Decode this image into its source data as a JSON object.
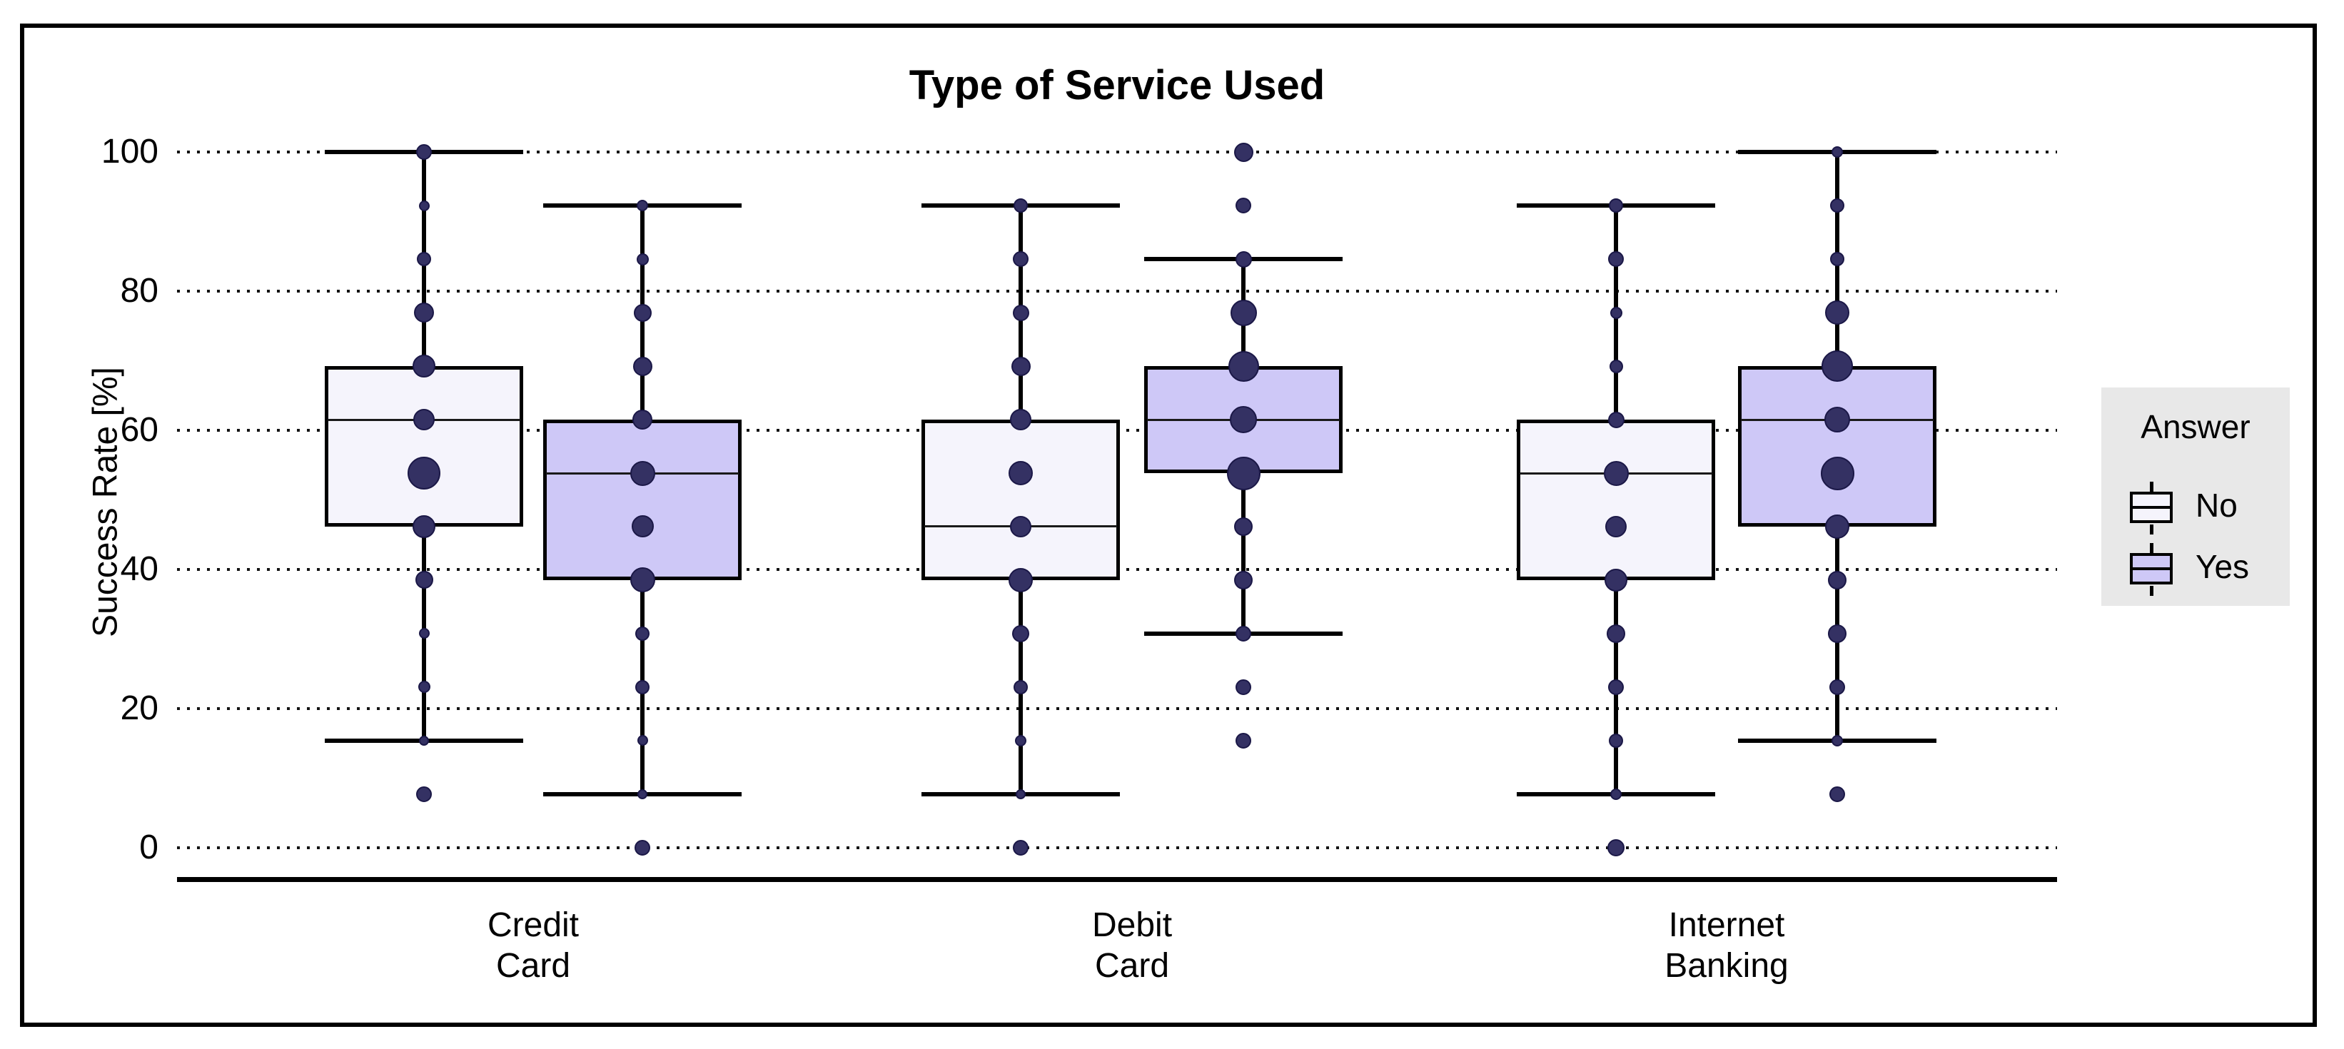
{
  "title": "Type of Service Used",
  "y_axis": {
    "label": "Success Rate [%]",
    "ticks": [
      0,
      20,
      40,
      60,
      80,
      100
    ]
  },
  "x_axis": {
    "categories": [
      [
        "Credit",
        "Card"
      ],
      [
        "Debit",
        "Card"
      ],
      [
        "Internet",
        "Banking"
      ]
    ]
  },
  "legend": {
    "title": "Answer",
    "entries": [
      {
        "label": "No",
        "fill": "#f5f4fc"
      },
      {
        "label": "Yes",
        "fill": "#cec8f7"
      }
    ]
  },
  "style": {
    "dot_fill": "#343163",
    "dot_stroke": "#1b1847",
    "box_stroke": "#000000",
    "no_fill": "#f5f4fc",
    "yes_fill": "#cec8f7",
    "legend_bg": "#e8e8e8",
    "grid_color": "#141414"
  },
  "chart_data": {
    "type": "boxplot",
    "title": "Type of Service Used",
    "ylabel": "Success Rate [%]",
    "ylim": [
      0,
      100
    ],
    "yticks": [
      0,
      20,
      40,
      60,
      80,
      100
    ],
    "grid": "dotted-horizontal",
    "legend_position": "right",
    "legend_title": "Answer",
    "categories": [
      "Credit Card",
      "Debit Card",
      "Internet Banking"
    ],
    "series_names": [
      "No",
      "Yes"
    ],
    "groups": [
      {
        "category": "Credit Card",
        "boxes": [
          {
            "answer": "No",
            "whisker_low": 15.4,
            "q1": 46.2,
            "median": 61.5,
            "q3": 69.2,
            "whisker_high": 100,
            "outliers": [
              7.7
            ],
            "dots": [
              [
                100,
                22
              ],
              [
                92.3,
                15
              ],
              [
                84.6,
                20
              ],
              [
                76.9,
                28
              ],
              [
                69.2,
                32
              ],
              [
                61.5,
                30
              ],
              [
                53.8,
                46
              ],
              [
                46.2,
                32
              ],
              [
                38.5,
                25
              ],
              [
                30.8,
                15
              ],
              [
                23.1,
                17
              ],
              [
                15.4,
                14
              ],
              [
                7.7,
                22
              ]
            ]
          },
          {
            "answer": "Yes",
            "whisker_low": 7.7,
            "q1": 38.5,
            "median": 53.8,
            "q3": 61.5,
            "whisker_high": 92.3,
            "outliers": [
              0
            ],
            "dots": [
              [
                92.3,
                16
              ],
              [
                84.6,
                17
              ],
              [
                76.9,
                25
              ],
              [
                69.2,
                27
              ],
              [
                61.5,
                28
              ],
              [
                53.8,
                35
              ],
              [
                46.2,
                31
              ],
              [
                38.5,
                35
              ],
              [
                30.8,
                20
              ],
              [
                23.1,
                20
              ],
              [
                15.4,
                15
              ],
              [
                7.7,
                14
              ],
              [
                0,
                22
              ]
            ]
          }
        ]
      },
      {
        "category": "Debit Card",
        "boxes": [
          {
            "answer": "No",
            "whisker_low": 7.7,
            "q1": 38.5,
            "median": 46.2,
            "q3": 61.5,
            "whisker_high": 92.3,
            "outliers": [
              0
            ],
            "dots": [
              [
                92.3,
                20
              ],
              [
                84.6,
                22
              ],
              [
                76.9,
                23
              ],
              [
                69.2,
                27
              ],
              [
                61.5,
                30
              ],
              [
                53.8,
                34
              ],
              [
                46.2,
                30
              ],
              [
                38.5,
                34
              ],
              [
                30.8,
                24
              ],
              [
                23.1,
                20
              ],
              [
                15.4,
                16
              ],
              [
                7.7,
                14
              ],
              [
                0,
                22
              ]
            ]
          },
          {
            "answer": "Yes",
            "whisker_low": 30.8,
            "q1": 53.8,
            "median": 61.5,
            "q3": 69.2,
            "whisker_high": 84.6,
            "outliers": [
              100,
              92.3,
              23.1,
              15.4
            ],
            "dots": [
              [
                100,
                27
              ],
              [
                92.3,
                22
              ],
              [
                84.6,
                23
              ],
              [
                76.9,
                37
              ],
              [
                69.2,
                43
              ],
              [
                61.5,
                38
              ],
              [
                53.8,
                47
              ],
              [
                46.2,
                26
              ],
              [
                38.5,
                26
              ],
              [
                30.8,
                22
              ],
              [
                23.1,
                22
              ],
              [
                15.4,
                22
              ]
            ]
          }
        ]
      },
      {
        "category": "Internet Banking",
        "boxes": [
          {
            "answer": "No",
            "whisker_low": 7.7,
            "q1": 38.5,
            "median": 53.8,
            "q3": 61.5,
            "whisker_high": 92.3,
            "outliers": [
              0
            ],
            "dots": [
              [
                92.3,
                20
              ],
              [
                84.6,
                22
              ],
              [
                76.9,
                17
              ],
              [
                69.2,
                19
              ],
              [
                61.5,
                23
              ],
              [
                53.8,
                35
              ],
              [
                46.2,
                30
              ],
              [
                38.5,
                32
              ],
              [
                30.8,
                26
              ],
              [
                23.1,
                22
              ],
              [
                15.4,
                20
              ],
              [
                7.7,
                16
              ],
              [
                0,
                24
              ]
            ]
          },
          {
            "answer": "Yes",
            "whisker_low": 15.4,
            "q1": 46.2,
            "median": 61.5,
            "q3": 69.2,
            "whisker_high": 100,
            "outliers": [
              7.7
            ],
            "dots": [
              [
                100,
                16
              ],
              [
                92.3,
                20
              ],
              [
                84.6,
                20
              ],
              [
                76.9,
                34
              ],
              [
                69.2,
                44
              ],
              [
                61.5,
                36
              ],
              [
                53.8,
                47
              ],
              [
                46.2,
                34
              ],
              [
                38.5,
                26
              ],
              [
                30.8,
                26
              ],
              [
                23.1,
                22
              ],
              [
                15.4,
                16
              ],
              [
                7.7,
                22
              ]
            ]
          }
        ]
      }
    ]
  }
}
